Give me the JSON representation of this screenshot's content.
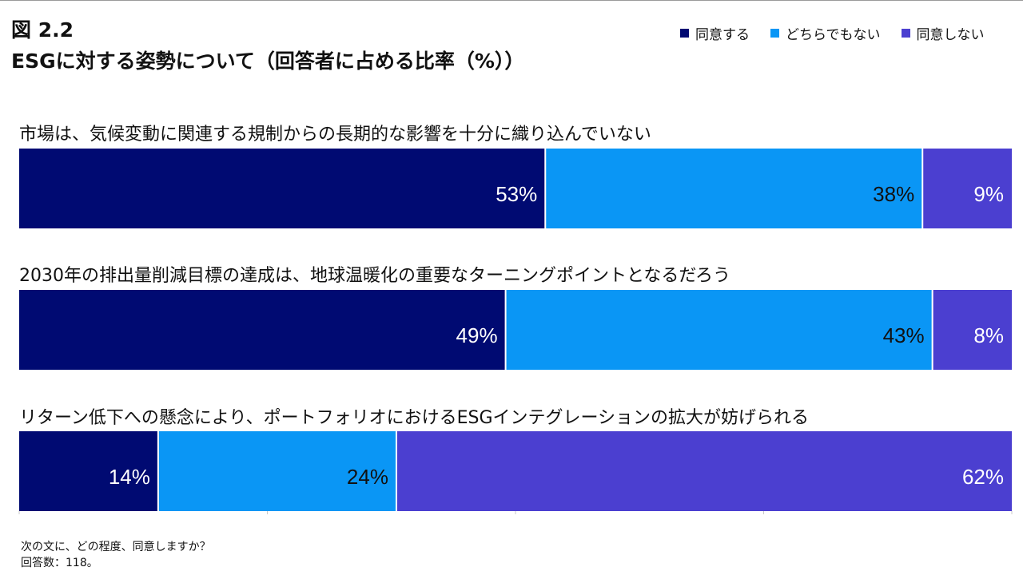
{
  "figure": {
    "number": "図 2.2",
    "title": "ESGに対する姿勢について（回答者に占める比率（%））"
  },
  "chart_data": {
    "type": "bar",
    "orientation": "horizontal",
    "stacked": true,
    "unit": "%",
    "xlim": [
      0,
      100
    ],
    "legend_position": "top-right",
    "categories": [
      "市場は、気候変動に関連する規制からの長期的な影響を十分に織り込んでいない",
      "2030年の排出量削減目標の達成は、地球温暖化の重要なターニングポイントとなるだろう",
      "リターン低下への懸念により、ポートフォリオにおけるESGインテグレーションの拡大が妨げられる"
    ],
    "series": [
      {
        "name": "同意する",
        "color": "#000a72",
        "label_color": "#ffffff",
        "values": [
          53,
          49,
          14
        ]
      },
      {
        "name": "どちらでもない",
        "color": "#0a96f5",
        "label_color": "#111111",
        "values": [
          38,
          43,
          24
        ]
      },
      {
        "name": "同意しない",
        "color": "#4b3fd0",
        "label_color": "#ffffff",
        "values": [
          9,
          8,
          62
        ]
      }
    ]
  },
  "footnote": {
    "question": "次の文に、どの程度、同意しますか？",
    "respondents": "回答数：118。"
  }
}
